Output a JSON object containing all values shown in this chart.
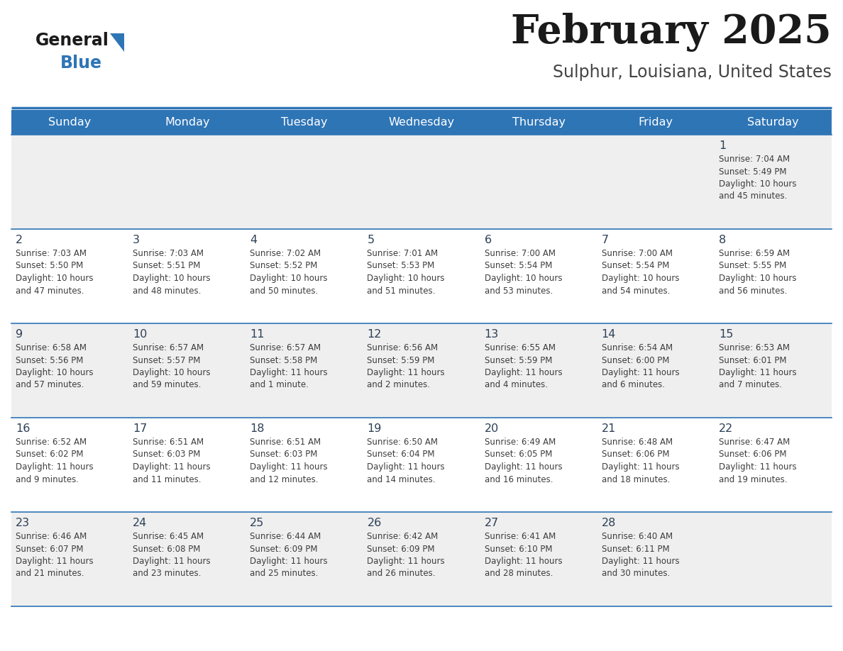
{
  "title": "February 2025",
  "subtitle": "Sulphur, Louisiana, United States",
  "header_bg": "#2E75B6",
  "header_text_color": "#FFFFFF",
  "row_bg_even": "#EFEFEF",
  "row_bg_odd": "#FFFFFF",
  "day_names": [
    "Sunday",
    "Monday",
    "Tuesday",
    "Wednesday",
    "Thursday",
    "Friday",
    "Saturday"
  ],
  "cell_text_color": "#3D3D3D",
  "day_number_color": "#2E4057",
  "divider_color": "#2E75B6",
  "logo_general_color": "#1a1a1a",
  "logo_blue_color": "#2E75B6",
  "logo_triangle_color": "#2E75B6",
  "title_color": "#1a1a1a",
  "subtitle_color": "#444444",
  "calendar_data": [
    [
      {
        "day": 0,
        "text": ""
      },
      {
        "day": 0,
        "text": ""
      },
      {
        "day": 0,
        "text": ""
      },
      {
        "day": 0,
        "text": ""
      },
      {
        "day": 0,
        "text": ""
      },
      {
        "day": 0,
        "text": ""
      },
      {
        "day": 1,
        "text": "Sunrise: 7:04 AM\nSunset: 5:49 PM\nDaylight: 10 hours\nand 45 minutes."
      }
    ],
    [
      {
        "day": 2,
        "text": "Sunrise: 7:03 AM\nSunset: 5:50 PM\nDaylight: 10 hours\nand 47 minutes."
      },
      {
        "day": 3,
        "text": "Sunrise: 7:03 AM\nSunset: 5:51 PM\nDaylight: 10 hours\nand 48 minutes."
      },
      {
        "day": 4,
        "text": "Sunrise: 7:02 AM\nSunset: 5:52 PM\nDaylight: 10 hours\nand 50 minutes."
      },
      {
        "day": 5,
        "text": "Sunrise: 7:01 AM\nSunset: 5:53 PM\nDaylight: 10 hours\nand 51 minutes."
      },
      {
        "day": 6,
        "text": "Sunrise: 7:00 AM\nSunset: 5:54 PM\nDaylight: 10 hours\nand 53 minutes."
      },
      {
        "day": 7,
        "text": "Sunrise: 7:00 AM\nSunset: 5:54 PM\nDaylight: 10 hours\nand 54 minutes."
      },
      {
        "day": 8,
        "text": "Sunrise: 6:59 AM\nSunset: 5:55 PM\nDaylight: 10 hours\nand 56 minutes."
      }
    ],
    [
      {
        "day": 9,
        "text": "Sunrise: 6:58 AM\nSunset: 5:56 PM\nDaylight: 10 hours\nand 57 minutes."
      },
      {
        "day": 10,
        "text": "Sunrise: 6:57 AM\nSunset: 5:57 PM\nDaylight: 10 hours\nand 59 minutes."
      },
      {
        "day": 11,
        "text": "Sunrise: 6:57 AM\nSunset: 5:58 PM\nDaylight: 11 hours\nand 1 minute."
      },
      {
        "day": 12,
        "text": "Sunrise: 6:56 AM\nSunset: 5:59 PM\nDaylight: 11 hours\nand 2 minutes."
      },
      {
        "day": 13,
        "text": "Sunrise: 6:55 AM\nSunset: 5:59 PM\nDaylight: 11 hours\nand 4 minutes."
      },
      {
        "day": 14,
        "text": "Sunrise: 6:54 AM\nSunset: 6:00 PM\nDaylight: 11 hours\nand 6 minutes."
      },
      {
        "day": 15,
        "text": "Sunrise: 6:53 AM\nSunset: 6:01 PM\nDaylight: 11 hours\nand 7 minutes."
      }
    ],
    [
      {
        "day": 16,
        "text": "Sunrise: 6:52 AM\nSunset: 6:02 PM\nDaylight: 11 hours\nand 9 minutes."
      },
      {
        "day": 17,
        "text": "Sunrise: 6:51 AM\nSunset: 6:03 PM\nDaylight: 11 hours\nand 11 minutes."
      },
      {
        "day": 18,
        "text": "Sunrise: 6:51 AM\nSunset: 6:03 PM\nDaylight: 11 hours\nand 12 minutes."
      },
      {
        "day": 19,
        "text": "Sunrise: 6:50 AM\nSunset: 6:04 PM\nDaylight: 11 hours\nand 14 minutes."
      },
      {
        "day": 20,
        "text": "Sunrise: 6:49 AM\nSunset: 6:05 PM\nDaylight: 11 hours\nand 16 minutes."
      },
      {
        "day": 21,
        "text": "Sunrise: 6:48 AM\nSunset: 6:06 PM\nDaylight: 11 hours\nand 18 minutes."
      },
      {
        "day": 22,
        "text": "Sunrise: 6:47 AM\nSunset: 6:06 PM\nDaylight: 11 hours\nand 19 minutes."
      }
    ],
    [
      {
        "day": 23,
        "text": "Sunrise: 6:46 AM\nSunset: 6:07 PM\nDaylight: 11 hours\nand 21 minutes."
      },
      {
        "day": 24,
        "text": "Sunrise: 6:45 AM\nSunset: 6:08 PM\nDaylight: 11 hours\nand 23 minutes."
      },
      {
        "day": 25,
        "text": "Sunrise: 6:44 AM\nSunset: 6:09 PM\nDaylight: 11 hours\nand 25 minutes."
      },
      {
        "day": 26,
        "text": "Sunrise: 6:42 AM\nSunset: 6:09 PM\nDaylight: 11 hours\nand 26 minutes."
      },
      {
        "day": 27,
        "text": "Sunrise: 6:41 AM\nSunset: 6:10 PM\nDaylight: 11 hours\nand 28 minutes."
      },
      {
        "day": 28,
        "text": "Sunrise: 6:40 AM\nSunset: 6:11 PM\nDaylight: 11 hours\nand 30 minutes."
      },
      {
        "day": 0,
        "text": ""
      }
    ]
  ]
}
